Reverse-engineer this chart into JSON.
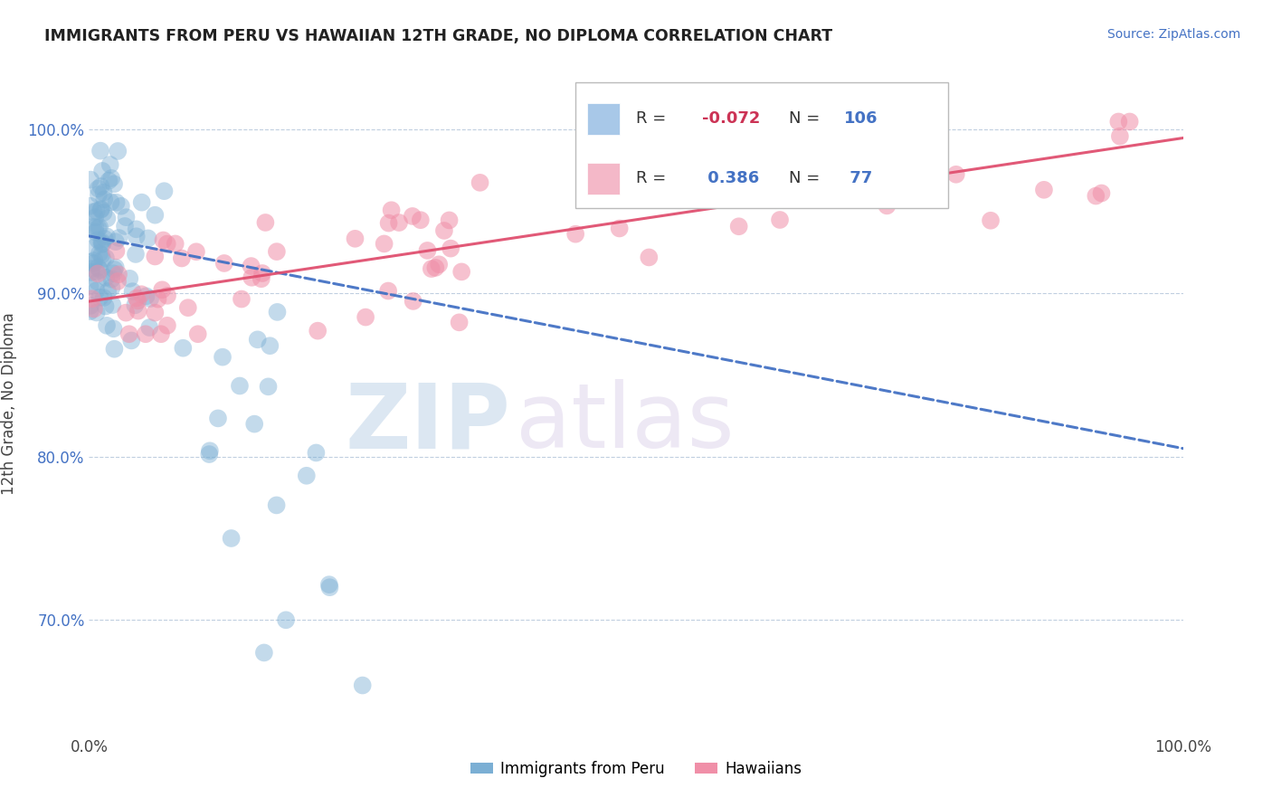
{
  "title": "IMMIGRANTS FROM PERU VS HAWAIIAN 12TH GRADE, NO DIPLOMA CORRELATION CHART",
  "source_text": "Source: ZipAtlas.com",
  "ylabel": "12th Grade, No Diploma",
  "watermark_zip": "ZIP",
  "watermark_atlas": "atlas",
  "peru_color": "#7bafd4",
  "peru_edge": "#7bafd4",
  "hawaii_color": "#f08fa8",
  "hawaii_edge": "#f08fa8",
  "peru_line_color": "#4472c4",
  "hawaii_line_color": "#e05070",
  "legend_peru_color": "#a8c8e8",
  "legend_hawaii_color": "#f4b8c8",
  "xlim": [
    0.0,
    1.0
  ],
  "ylim": [
    0.63,
    1.035
  ],
  "ytick_positions": [
    1.0,
    0.9,
    0.8,
    0.7
  ],
  "ytick_labels": [
    "100.0%",
    "90.0%",
    "80.0%",
    "70.0%"
  ],
  "peru_line_y0": 0.935,
  "peru_line_y1": 0.805,
  "hawaii_line_y0": 0.895,
  "hawaii_line_y1": 0.995,
  "R_peru": "-0.072",
  "N_peru": "106",
  "R_hawaii": "0.386",
  "N_hawaii": "77"
}
